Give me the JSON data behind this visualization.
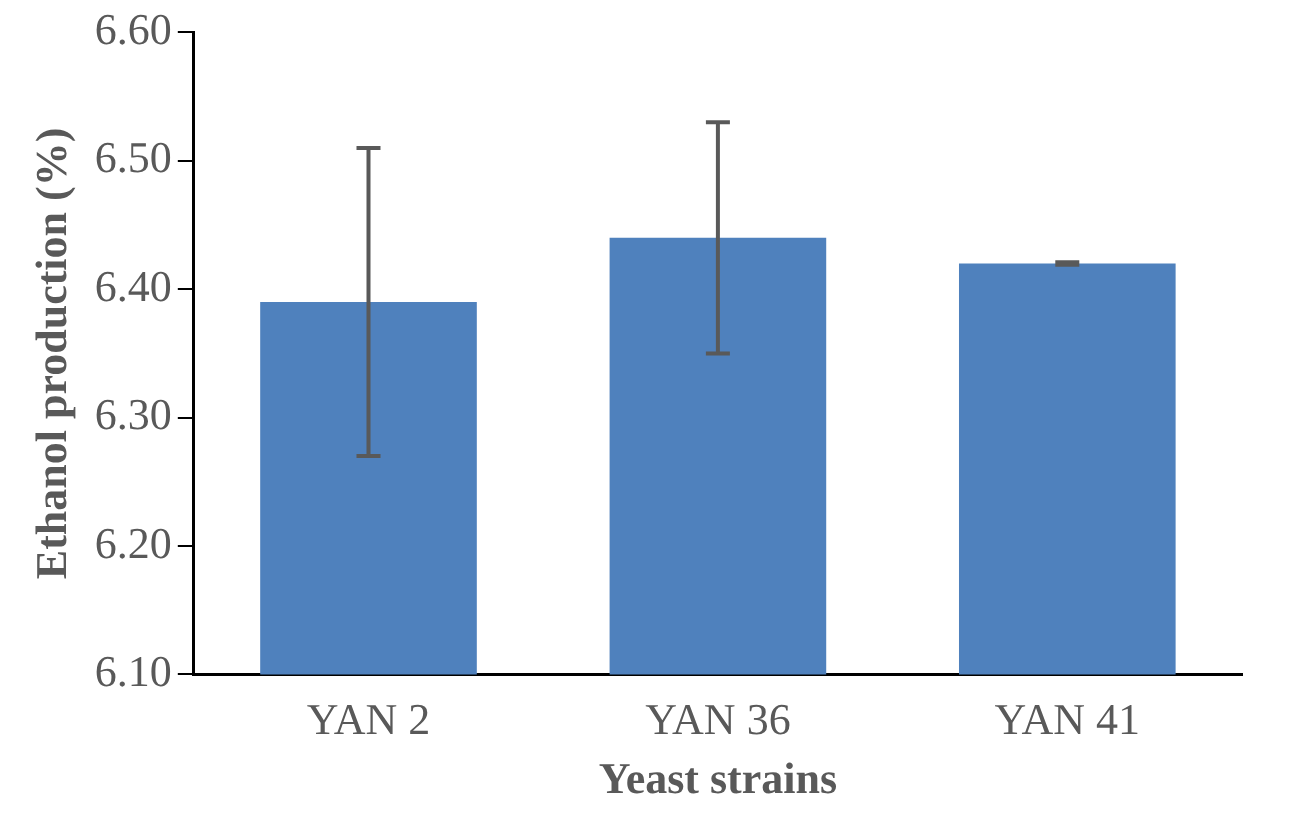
{
  "chart_data": {
    "type": "bar",
    "xlabel": "Yeast strains",
    "ylabel": "Ethanol production (%)",
    "categories": [
      "YAN 2",
      "YAN 36",
      "YAN 41"
    ],
    "values": [
      6.39,
      6.44,
      6.42
    ],
    "errors": [
      0.12,
      0.09,
      0.001
    ],
    "color": "#4f81bd",
    "ylim": [
      6.1,
      6.6
    ],
    "yticks": [
      {
        "value": 6.1,
        "label": "6.10"
      },
      {
        "value": 6.2,
        "label": "6.20"
      },
      {
        "value": 6.3,
        "label": "6.30"
      },
      {
        "value": 6.4,
        "label": "6.40"
      },
      {
        "value": 6.5,
        "label": "6.50"
      },
      {
        "value": 6.6,
        "label": "6.60"
      }
    ],
    "grid": false,
    "legend": false
  }
}
